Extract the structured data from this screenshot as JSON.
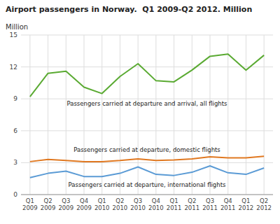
{
  "chart_data": {
    "type": "line",
    "title": "Airport passengers in Norway.  Q1 2009-Q2 2012. Million",
    "ylabel": "Million",
    "categories": [
      "Q1\n2009",
      "Q2\n2009",
      "Q3\n2009",
      "Q4\n2009",
      "Q1\n2010",
      "Q2\n2010",
      "Q3\n2010",
      "Q4\n2010",
      "Q1\n2011",
      "Q2\n2011",
      "Q3\n2011",
      "Q4\n2011",
      "Q1\n2012",
      "Q2\n2012"
    ],
    "series": [
      {
        "name": "Passengers carried at departure and arrival, all flights",
        "color": "#5aaa32",
        "values": [
          9.2,
          11.4,
          11.6,
          10.1,
          9.5,
          11.1,
          12.3,
          10.7,
          10.6,
          11.7,
          13.0,
          13.2,
          11.7,
          13.1
        ]
      },
      {
        "name": "Passengers carried at departure, domestic flights",
        "color": "#e07820",
        "values": [
          3.1,
          3.3,
          3.2,
          3.1,
          3.1,
          3.2,
          3.35,
          3.2,
          3.25,
          3.35,
          3.55,
          3.45,
          3.45,
          3.6
        ]
      },
      {
        "name": "Passengers carried at departure, international flights",
        "color": "#5b9bd5",
        "values": [
          1.6,
          2.0,
          2.2,
          1.7,
          1.7,
          2.0,
          2.6,
          1.9,
          1.8,
          2.1,
          2.7,
          2.05,
          1.9,
          2.5
        ]
      }
    ],
    "ylim": [
      0,
      15
    ],
    "yticks": [
      0,
      3,
      6,
      9,
      12,
      15
    ],
    "grid": true
  }
}
